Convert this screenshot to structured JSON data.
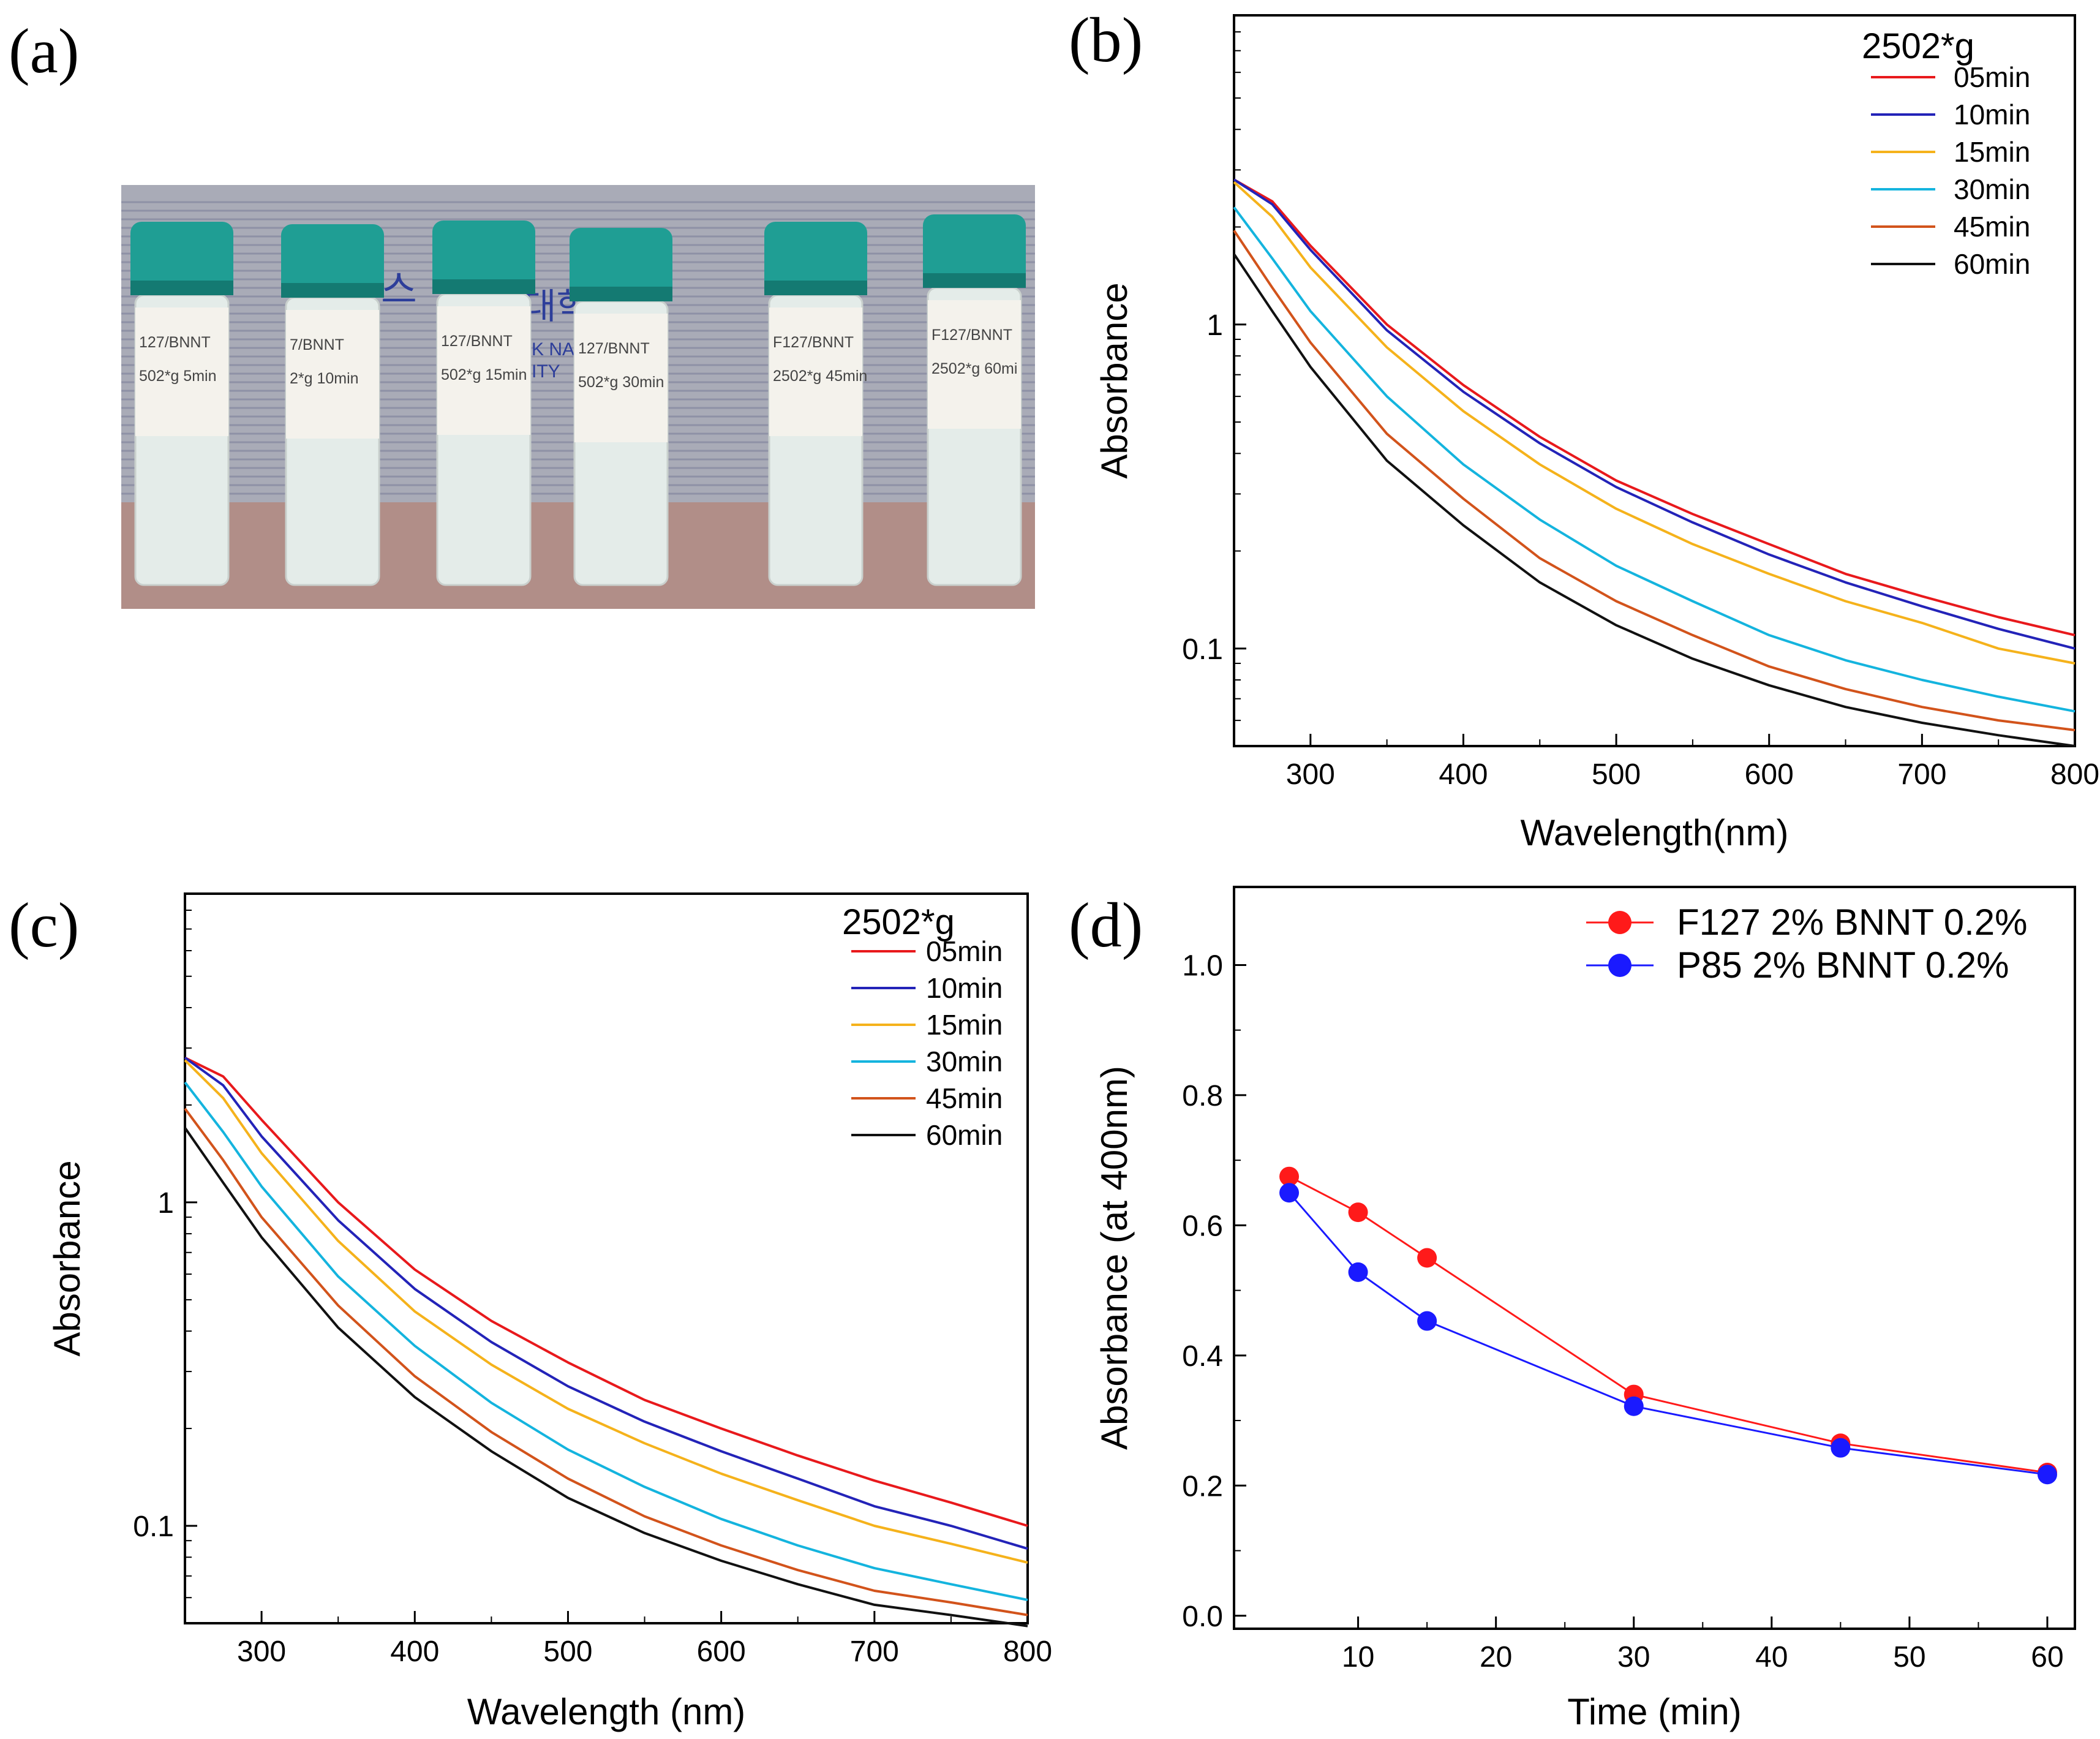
{
  "panel_letters": {
    "a": "(a)",
    "b": "(b)",
    "c": "(c)",
    "d": "(d)"
  },
  "photo": {
    "vials": [
      {
        "line1": "127/BNNT",
        "line2": "502*g 5min"
      },
      {
        "line1": "7/BNNT",
        "line2": "2*g 10min"
      },
      {
        "line1": "127/BNNT",
        "line2": "502*g 15min"
      },
      {
        "line1": "127/BNNT",
        "line2": "502*g 30min"
      },
      {
        "line1": "F127/BNNT",
        "line2": "2502*g 45min"
      },
      {
        "line1": "F127/BNNT",
        "line2": "2502*g 60mi"
      }
    ],
    "background_text": [
      "스",
      "대학",
      "K NATI",
      "ITY"
    ],
    "colors": {
      "cap": "#1f9e94",
      "cap_dark": "#147a72",
      "liquid": "#e4ece9",
      "label": "#f4f2ec",
      "backdrop": "#a8aab6",
      "table": "#b08d87"
    }
  },
  "chart_data": [
    {
      "panel": "b",
      "type": "line",
      "xlabel": "Wavelength(nm)",
      "ylabel": "Absorbance",
      "xlim": [
        250,
        800
      ],
      "ylim": [
        0.05,
        9.0
      ],
      "yscale": "log",
      "xticks": [
        300,
        400,
        500,
        600,
        700,
        800
      ],
      "yticks": [
        {
          "value": 0.1,
          "label": "0.1"
        },
        {
          "value": 1,
          "label": "1"
        }
      ],
      "legend_title": "2502*g",
      "legend_position": "top-right",
      "x": [
        250,
        275,
        300,
        350,
        400,
        450,
        500,
        550,
        600,
        650,
        700,
        750,
        800
      ],
      "series": [
        {
          "name": "05min",
          "color": "#e8191c",
          "values": [
            2.8,
            2.4,
            1.75,
            1.0,
            0.65,
            0.45,
            0.33,
            0.26,
            0.21,
            0.17,
            0.145,
            0.125,
            0.11
          ]
        },
        {
          "name": "10min",
          "color": "#2323b8",
          "values": [
            2.8,
            2.35,
            1.7,
            0.96,
            0.62,
            0.43,
            0.315,
            0.245,
            0.195,
            0.16,
            0.135,
            0.115,
            0.1
          ]
        },
        {
          "name": "15min",
          "color": "#f5b21b",
          "values": [
            2.75,
            2.15,
            1.5,
            0.85,
            0.54,
            0.37,
            0.27,
            0.21,
            0.17,
            0.14,
            0.12,
            0.1,
            0.09
          ]
        },
        {
          "name": "30min",
          "color": "#14b4de",
          "values": [
            2.3,
            1.6,
            1.1,
            0.6,
            0.37,
            0.25,
            0.18,
            0.14,
            0.11,
            0.092,
            0.08,
            0.071,
            0.064
          ]
        },
        {
          "name": "45min",
          "color": "#d2531b",
          "values": [
            1.95,
            1.3,
            0.88,
            0.46,
            0.29,
            0.19,
            0.14,
            0.11,
            0.088,
            0.075,
            0.066,
            0.06,
            0.056
          ]
        },
        {
          "name": "60min",
          "color": "#111111",
          "values": [
            1.65,
            1.1,
            0.74,
            0.38,
            0.24,
            0.16,
            0.118,
            0.093,
            0.077,
            0.066,
            0.059,
            0.054,
            0.05
          ]
        }
      ]
    },
    {
      "panel": "c",
      "type": "line",
      "xlabel": "Wavelength (nm)",
      "ylabel": "Absorbance",
      "xlim": [
        250,
        800
      ],
      "ylim": [
        0.05,
        9.0
      ],
      "yscale": "log",
      "xticks": [
        300,
        400,
        500,
        600,
        700,
        800
      ],
      "yticks": [
        {
          "value": 0.1,
          "label": "0.1"
        },
        {
          "value": 1,
          "label": "1"
        }
      ],
      "legend_title": "2502*g",
      "legend_position": "top-right",
      "x": [
        250,
        275,
        300,
        350,
        400,
        450,
        500,
        550,
        600,
        650,
        700,
        750,
        800
      ],
      "series": [
        {
          "name": "05min",
          "color": "#e8191c",
          "values": [
            2.8,
            2.45,
            1.8,
            1.0,
            0.62,
            0.43,
            0.32,
            0.245,
            0.2,
            0.165,
            0.138,
            0.118,
            0.1
          ]
        },
        {
          "name": "10min",
          "color": "#2323b8",
          "values": [
            2.8,
            2.3,
            1.6,
            0.88,
            0.54,
            0.37,
            0.27,
            0.21,
            0.17,
            0.14,
            0.115,
            0.1,
            0.085
          ]
        },
        {
          "name": "15min",
          "color": "#f5b21b",
          "values": [
            2.75,
            2.1,
            1.42,
            0.76,
            0.46,
            0.315,
            0.23,
            0.18,
            0.145,
            0.12,
            0.1,
            0.088,
            0.077
          ]
        },
        {
          "name": "30min",
          "color": "#14b4de",
          "values": [
            2.35,
            1.65,
            1.12,
            0.59,
            0.36,
            0.24,
            0.172,
            0.132,
            0.105,
            0.087,
            0.074,
            0.066,
            0.059
          ]
        },
        {
          "name": "45min",
          "color": "#d2531b",
          "values": [
            1.95,
            1.35,
            0.9,
            0.48,
            0.29,
            0.195,
            0.14,
            0.107,
            0.087,
            0.073,
            0.063,
            0.058,
            0.053
          ]
        },
        {
          "name": "60min",
          "color": "#111111",
          "values": [
            1.7,
            1.15,
            0.78,
            0.41,
            0.25,
            0.17,
            0.122,
            0.095,
            0.078,
            0.066,
            0.057,
            0.053,
            0.049
          ]
        }
      ]
    },
    {
      "panel": "d",
      "type": "line",
      "xlabel": "Time (min)",
      "ylabel": "Absorbance (at 400nm)",
      "xlim": [
        1,
        62
      ],
      "ylim": [
        -0.02,
        1.12
      ],
      "yscale": "linear",
      "xticks": [
        10,
        20,
        30,
        40,
        50,
        60
      ],
      "yticks": [
        {
          "value": 0.0,
          "label": "0.0"
        },
        {
          "value": 0.2,
          "label": "0.2"
        },
        {
          "value": 0.4,
          "label": "0.4"
        },
        {
          "value": 0.6,
          "label": "0.6"
        },
        {
          "value": 0.8,
          "label": "0.8"
        },
        {
          "value": 1.0,
          "label": "1.0"
        }
      ],
      "legend_position": "top-right",
      "x": [
        5,
        10,
        15,
        30,
        45,
        60
      ],
      "series": [
        {
          "name": "F127 2% BNNT 0.2%",
          "color": "#ff1a1a",
          "values": [
            0.675,
            0.62,
            0.55,
            0.34,
            0.265,
            0.22
          ]
        },
        {
          "name": "P85 2% BNNT 0.2%",
          "color": "#1a1aff",
          "values": [
            0.65,
            0.528,
            0.453,
            0.322,
            0.258,
            0.217
          ]
        }
      ]
    }
  ]
}
